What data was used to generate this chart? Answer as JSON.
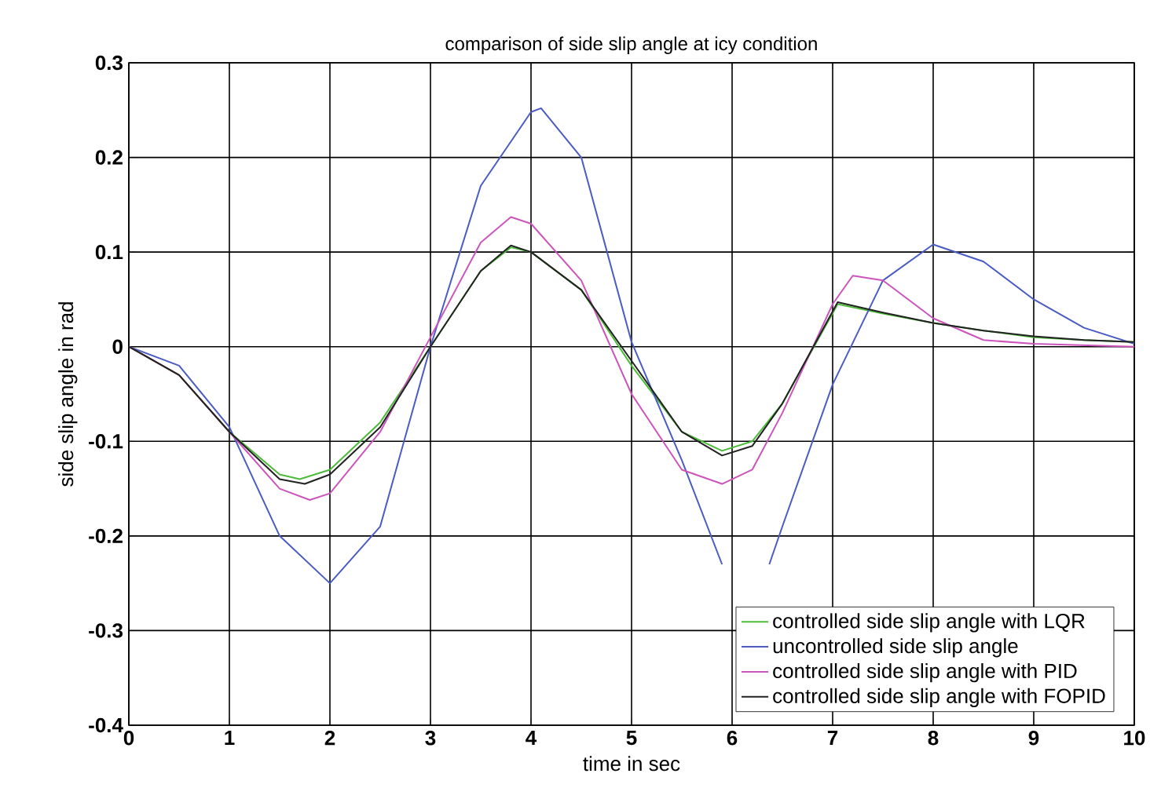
{
  "chart_data": {
    "type": "line",
    "title": "comparison of side slip angle at icy condition",
    "xlabel": "time in sec",
    "ylabel": "side slip angle in rad",
    "xlim": [
      0,
      10
    ],
    "ylim": [
      -0.4,
      0.3
    ],
    "xticks": [
      0,
      1,
      2,
      3,
      4,
      5,
      6,
      7,
      8,
      9,
      10
    ],
    "yticks": [
      -0.4,
      -0.3,
      -0.2,
      -0.1,
      0,
      0.1,
      0.2,
      0.3
    ],
    "grid": true,
    "legend": "bottom right",
    "line_style": "solid",
    "marker": "none",
    "series": [
      {
        "name": "controlled side slip angle with LQR",
        "color": "#4dbb3a",
        "x": [
          0,
          0.5,
          1,
          1.5,
          1.7,
          2,
          2.5,
          3,
          3.5,
          3.8,
          4,
          4.5,
          5,
          5.5,
          5.9,
          6.2,
          6.5,
          7.05,
          7.5,
          8,
          8.5,
          9,
          9.5,
          10
        ],
        "values": [
          0,
          -0.03,
          -0.09,
          -0.135,
          -0.14,
          -0.13,
          -0.08,
          0,
          0.08,
          0.105,
          0.1,
          0.06,
          -0.02,
          -0.09,
          -0.11,
          -0.1,
          -0.06,
          0.045,
          0.035,
          0.025,
          0.017,
          0.01,
          0.007,
          0.005
        ]
      },
      {
        "name": "uncontrolled side slip angle",
        "color": "#4a5bc4",
        "x": [
          0,
          0.5,
          1,
          1.5,
          2,
          2.5,
          3,
          3.5,
          4,
          4.1,
          4.5,
          5,
          5.5,
          5.9,
          6.1,
          6.37,
          6.5,
          7,
          7.5,
          8,
          8.5,
          9,
          9.5,
          10
        ],
        "values": [
          0,
          -0.02,
          -0.085,
          -0.2,
          -0.25,
          -0.19,
          0,
          0.17,
          0.248,
          0.252,
          0.2,
          0.005,
          -0.12,
          -0.23,
          null,
          -0.23,
          -0.19,
          -0.04,
          0.07,
          0.108,
          0.09,
          0.05,
          0.02,
          0.003
        ]
      },
      {
        "name": "controlled side slip angle with PID",
        "color": "#cc55bb",
        "x": [
          0,
          0.5,
          1,
          1.5,
          1.8,
          2,
          2.5,
          3,
          3.5,
          3.8,
          4,
          4.5,
          5,
          5.5,
          5.9,
          6.2,
          6.5,
          7,
          7.2,
          7.5,
          8,
          8.5,
          9,
          10
        ],
        "values": [
          0,
          -0.03,
          -0.09,
          -0.15,
          -0.162,
          -0.155,
          -0.09,
          0.01,
          0.11,
          0.137,
          0.13,
          0.07,
          -0.05,
          -0.13,
          -0.145,
          -0.13,
          -0.07,
          0.045,
          0.075,
          0.07,
          0.03,
          0.007,
          0.003,
          0
        ]
      },
      {
        "name": "controlled side slip angle with FOPID",
        "color": "#222222",
        "x": [
          0,
          0.5,
          1,
          1.5,
          1.75,
          2,
          2.5,
          3,
          3.5,
          3.8,
          4,
          4.5,
          5,
          5.5,
          5.9,
          6.2,
          6.5,
          7.05,
          7.5,
          8,
          8.5,
          9,
          9.5,
          10
        ],
        "values": [
          0,
          -0.03,
          -0.09,
          -0.14,
          -0.145,
          -0.135,
          -0.085,
          0,
          0.08,
          0.107,
          0.1,
          0.06,
          -0.015,
          -0.09,
          -0.115,
          -0.105,
          -0.06,
          0.047,
          0.036,
          0.025,
          0.017,
          0.011,
          0.007,
          0.005
        ]
      }
    ]
  }
}
